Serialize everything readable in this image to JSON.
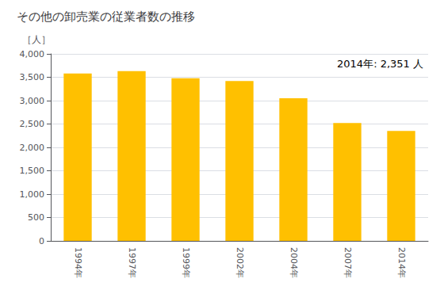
{
  "chart_data": {
    "type": "bar",
    "title": "その他の卸売業の従業者数の推移",
    "ylabel": "［人］",
    "annotation": "2014年: 2,351 人",
    "categories": [
      "1994年",
      "1997年",
      "1999年",
      "2002年",
      "2004年",
      "2007年",
      "2014年"
    ],
    "values": [
      3580,
      3630,
      3480,
      3420,
      3050,
      2520,
      2351
    ],
    "color": "#FFC000",
    "ylim": [
      0,
      4000
    ],
    "yticks": [
      0,
      500,
      {
        "value": 1000,
        "label": "1,000"
      },
      {
        "value": 1500,
        "label": "1,500"
      },
      {
        "value": 2000,
        "label": "2,000"
      },
      {
        "value": 2500,
        "label": "2,500"
      },
      {
        "value": 3000,
        "label": "3,000"
      },
      {
        "value": 3500,
        "label": "3,500"
      },
      {
        "value": 4000,
        "label": "4,000"
      }
    ],
    "grid": true
  }
}
